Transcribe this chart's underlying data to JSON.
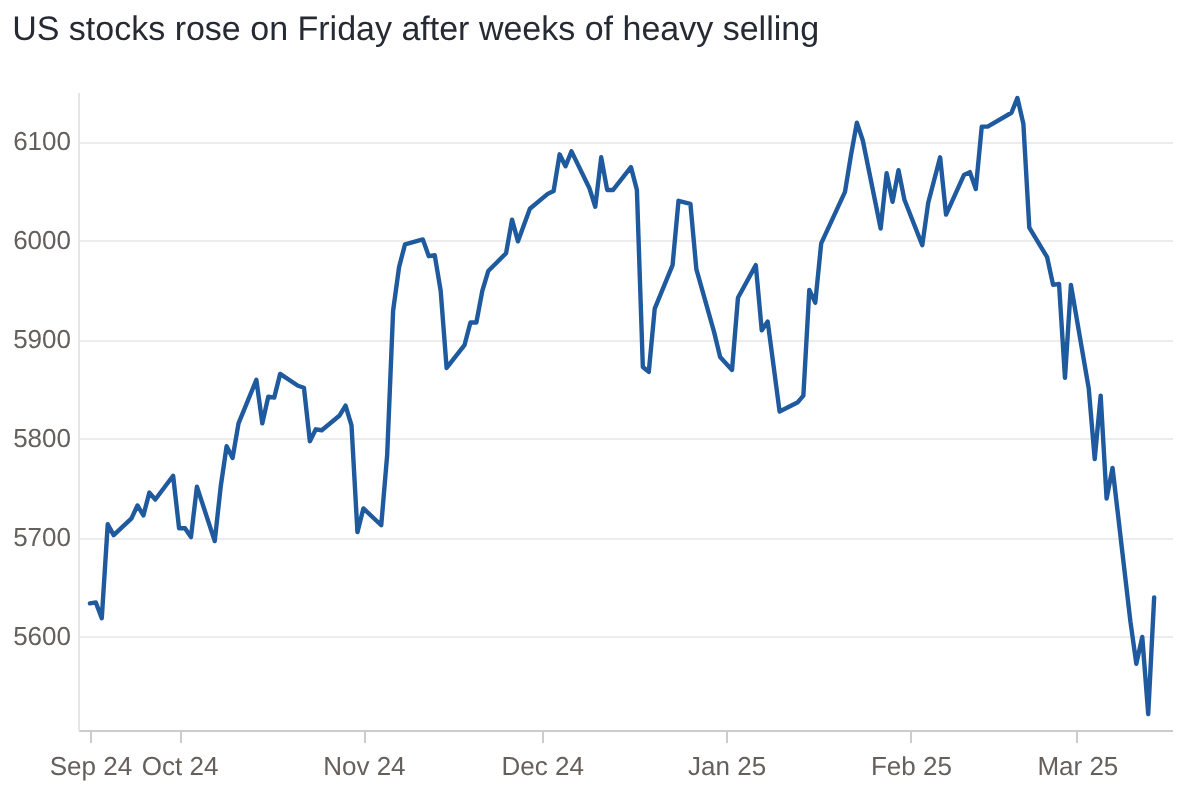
{
  "chart_data": {
    "type": "line",
    "title": "US stocks rose on Friday after weeks of heavy selling",
    "x": [
      "2024-09-16",
      "2024-09-17",
      "2024-09-18",
      "2024-09-19",
      "2024-09-20",
      "2024-09-23",
      "2024-09-24",
      "2024-09-25",
      "2024-09-26",
      "2024-09-27",
      "2024-09-30",
      "2024-10-01",
      "2024-10-02",
      "2024-10-03",
      "2024-10-04",
      "2024-10-07",
      "2024-10-08",
      "2024-10-09",
      "2024-10-10",
      "2024-10-11",
      "2024-10-14",
      "2024-10-15",
      "2024-10-16",
      "2024-10-17",
      "2024-10-18",
      "2024-10-21",
      "2024-10-22",
      "2024-10-23",
      "2024-10-24",
      "2024-10-25",
      "2024-10-28",
      "2024-10-29",
      "2024-10-30",
      "2024-10-31",
      "2024-11-01",
      "2024-11-04",
      "2024-11-05",
      "2024-11-06",
      "2024-11-07",
      "2024-11-08",
      "2024-11-11",
      "2024-11-12",
      "2024-11-13",
      "2024-11-14",
      "2024-11-15",
      "2024-11-18",
      "2024-11-19",
      "2024-11-20",
      "2024-11-21",
      "2024-11-22",
      "2024-11-25",
      "2024-11-26",
      "2024-11-27",
      "2024-11-29",
      "2024-12-02",
      "2024-12-03",
      "2024-12-04",
      "2024-12-05",
      "2024-12-06",
      "2024-12-09",
      "2024-12-10",
      "2024-12-11",
      "2024-12-12",
      "2024-12-13",
      "2024-12-16",
      "2024-12-17",
      "2024-12-18",
      "2024-12-19",
      "2024-12-20",
      "2024-12-23",
      "2024-12-24",
      "2024-12-26",
      "2024-12-27",
      "2024-12-30",
      "2024-12-31",
      "2025-01-02",
      "2025-01-03",
      "2025-01-06",
      "2025-01-07",
      "2025-01-08",
      "2025-01-10",
      "2025-01-13",
      "2025-01-14",
      "2025-01-15",
      "2025-01-16",
      "2025-01-17",
      "2025-01-21",
      "2025-01-22",
      "2025-01-23",
      "2025-01-24",
      "2025-01-27",
      "2025-01-28",
      "2025-01-29",
      "2025-01-30",
      "2025-01-31",
      "2025-02-03",
      "2025-02-04",
      "2025-02-05",
      "2025-02-06",
      "2025-02-07",
      "2025-02-10",
      "2025-02-11",
      "2025-02-12",
      "2025-02-13",
      "2025-02-14",
      "2025-02-18",
      "2025-02-19",
      "2025-02-20",
      "2025-02-21",
      "2025-02-24",
      "2025-02-25",
      "2025-02-26",
      "2025-02-27",
      "2025-02-28",
      "2025-03-03",
      "2025-03-04",
      "2025-03-05",
      "2025-03-06",
      "2025-03-07",
      "2025-03-10",
      "2025-03-11",
      "2025-03-12",
      "2025-03-13",
      "2025-03-14"
    ],
    "series": [
      {
        "color": "#1f5a9e",
        "values": [
          5633,
          5634,
          5618,
          5713,
          5702,
          5719,
          5732,
          5722,
          5745,
          5738,
          5762,
          5709,
          5709,
          5700,
          5751,
          5696,
          5751,
          5792,
          5780,
          5815,
          5859,
          5815,
          5842,
          5841,
          5865,
          5853,
          5851,
          5797,
          5809,
          5808,
          5823,
          5833,
          5813,
          5705,
          5729,
          5712,
          5783,
          5929,
          5973,
          5996,
          6001,
          5984,
          5985,
          5949,
          5871,
          5894,
          5917,
          5917,
          5949,
          5969,
          5987,
          6021,
          5999,
          6032,
          6047,
          6050,
          6087,
          6075,
          6090,
          6053,
          6034,
          6084,
          6051,
          6051,
          6074,
          6051,
          5872,
          5867,
          5931,
          5975,
          6040,
          6037,
          5971,
          5907,
          5882,
          5869,
          5942,
          5975,
          5909,
          5918,
          5827,
          5836,
          5843,
          5950,
          5937,
          5997,
          6049,
          6086,
          6119,
          6101,
          6012,
          6068,
          6039,
          6071,
          6041,
          5995,
          6038,
          6061,
          6084,
          6026,
          6066,
          6069,
          6052,
          6115,
          6115,
          6129,
          6144,
          6118,
          6013,
          5983,
          5955,
          5956,
          5861,
          5955,
          5850,
          5779,
          5843,
          5739,
          5770,
          5615,
          5572,
          5599,
          5521,
          5639
        ]
      }
    ],
    "ylim": [
      5505,
      6150
    ],
    "yticks": [
      5600,
      5700,
      5800,
      5900,
      6000,
      6100
    ],
    "xlim": [
      "2024-09-14",
      "2025-03-17"
    ],
    "xticks": [
      {
        "value": "2024-09-16",
        "label": "Sep 24"
      },
      {
        "value": "2024-10-01",
        "label": "Oct 24"
      },
      {
        "value": "2024-11-01",
        "label": "Nov 24"
      },
      {
        "value": "2024-12-01",
        "label": "Dec 24"
      },
      {
        "value": "2025-01-01",
        "label": "Jan 25"
      },
      {
        "value": "2025-02-01",
        "label": "Feb 25"
      },
      {
        "value": "2025-03-01",
        "label": "Mar 25"
      }
    ],
    "grid": "y",
    "legend": false,
    "marker": "none",
    "line_style": "solid"
  }
}
